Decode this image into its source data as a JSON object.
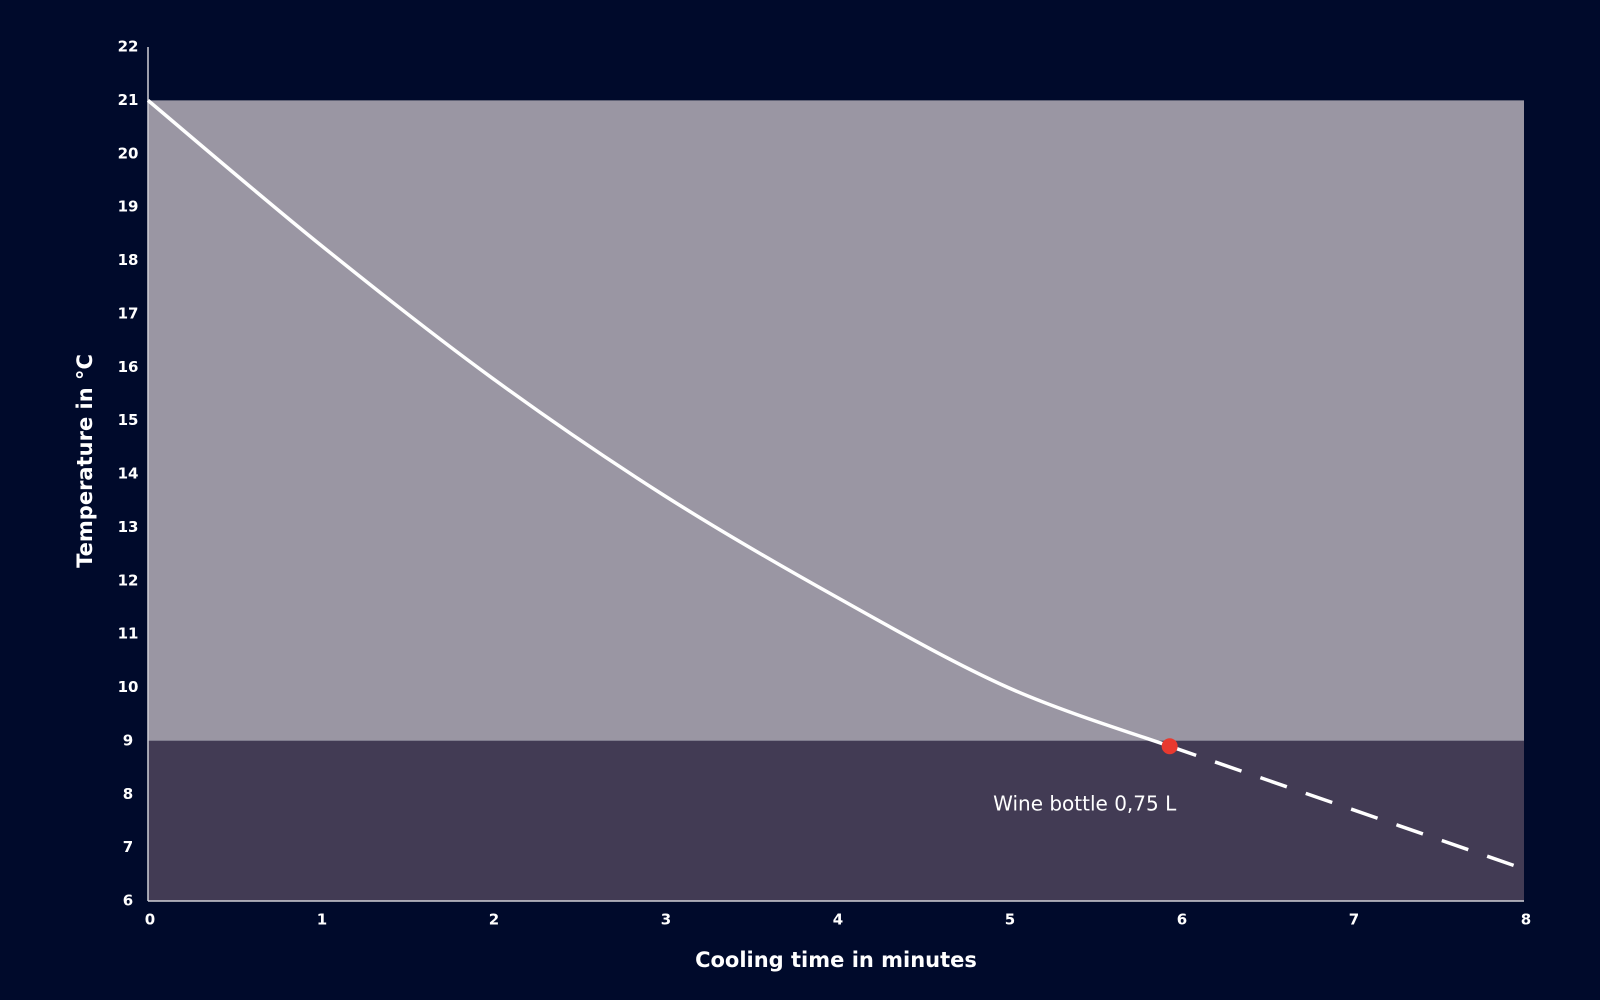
{
  "chart_data": {
    "type": "line",
    "x_label": "Cooling time in minutes",
    "y_label": "Temperature in °C",
    "xlim": [
      0,
      8
    ],
    "ylim": [
      6,
      22
    ],
    "xticks": [
      0,
      1,
      2,
      3,
      4,
      5,
      6,
      7,
      8
    ],
    "yticks": [
      6,
      7,
      8,
      9,
      10,
      11,
      12,
      13,
      14,
      15,
      16,
      17,
      18,
      19,
      20,
      21,
      22
    ],
    "grid": false,
    "bands": [
      {
        "from": 9,
        "to": 21,
        "color": "#9a96a3"
      },
      {
        "from": 6,
        "to": 9,
        "color": "#423b54"
      }
    ],
    "series": [
      {
        "color": "#ffffff",
        "dashed": false,
        "x": [
          0,
          1,
          2,
          3,
          4,
          5,
          5.94
        ],
        "values": [
          21,
          18.3,
          15.8,
          13.6,
          11.7,
          10.0,
          8.9
        ]
      },
      {
        "color": "#ffffff",
        "dashed": true,
        "x": [
          5.94,
          8
        ],
        "values": [
          8.9,
          6.6
        ]
      }
    ],
    "marker": {
      "x": 5.94,
      "y": 8.9,
      "color": "#e8392f"
    },
    "annotation": "Wine bottle 0,75 L"
  }
}
